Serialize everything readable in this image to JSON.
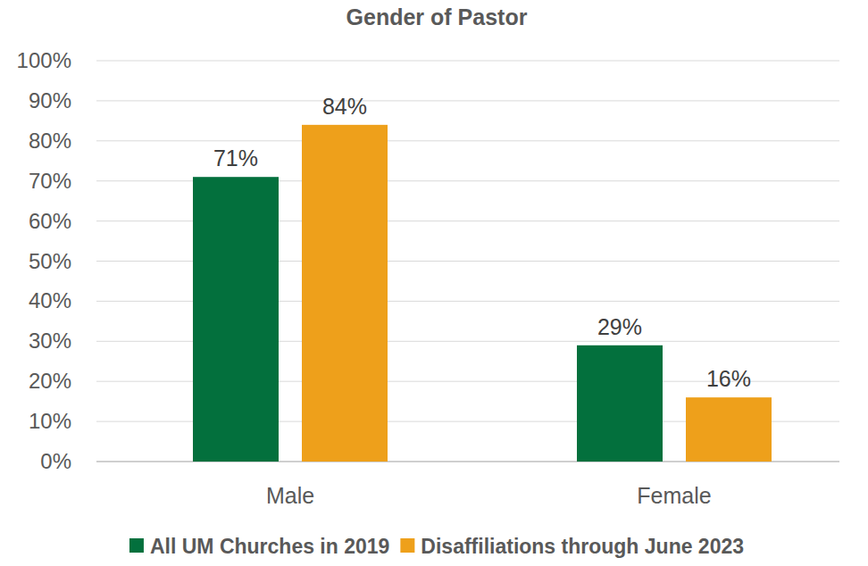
{
  "chart_data": {
    "type": "bar",
    "title": "Gender of Pastor",
    "categories": [
      "Male",
      "Female"
    ],
    "series": [
      {
        "name": "All UM Churches in 2019",
        "color": "#03703d",
        "values": [
          71,
          29
        ],
        "value_labels": [
          "71%",
          "29%"
        ]
      },
      {
        "name": "Disaffiliations through June 2023",
        "color": "#eea01b",
        "values": [
          84,
          16
        ],
        "value_labels": [
          "84%",
          "16%"
        ]
      }
    ],
    "ylim": [
      0,
      100
    ],
    "yticks": [
      {
        "value": 0,
        "label": "0%"
      },
      {
        "value": 10,
        "label": "10%"
      },
      {
        "value": 20,
        "label": "20%"
      },
      {
        "value": 30,
        "label": "30%"
      },
      {
        "value": 40,
        "label": "40%"
      },
      {
        "value": 50,
        "label": "50%"
      },
      {
        "value": 60,
        "label": "60%"
      },
      {
        "value": 70,
        "label": "70%"
      },
      {
        "value": 80,
        "label": "80%"
      },
      {
        "value": 90,
        "label": "90%"
      },
      {
        "value": 100,
        "label": "100%"
      }
    ],
    "grid": true,
    "data_labels": true,
    "legend": "bottom"
  }
}
